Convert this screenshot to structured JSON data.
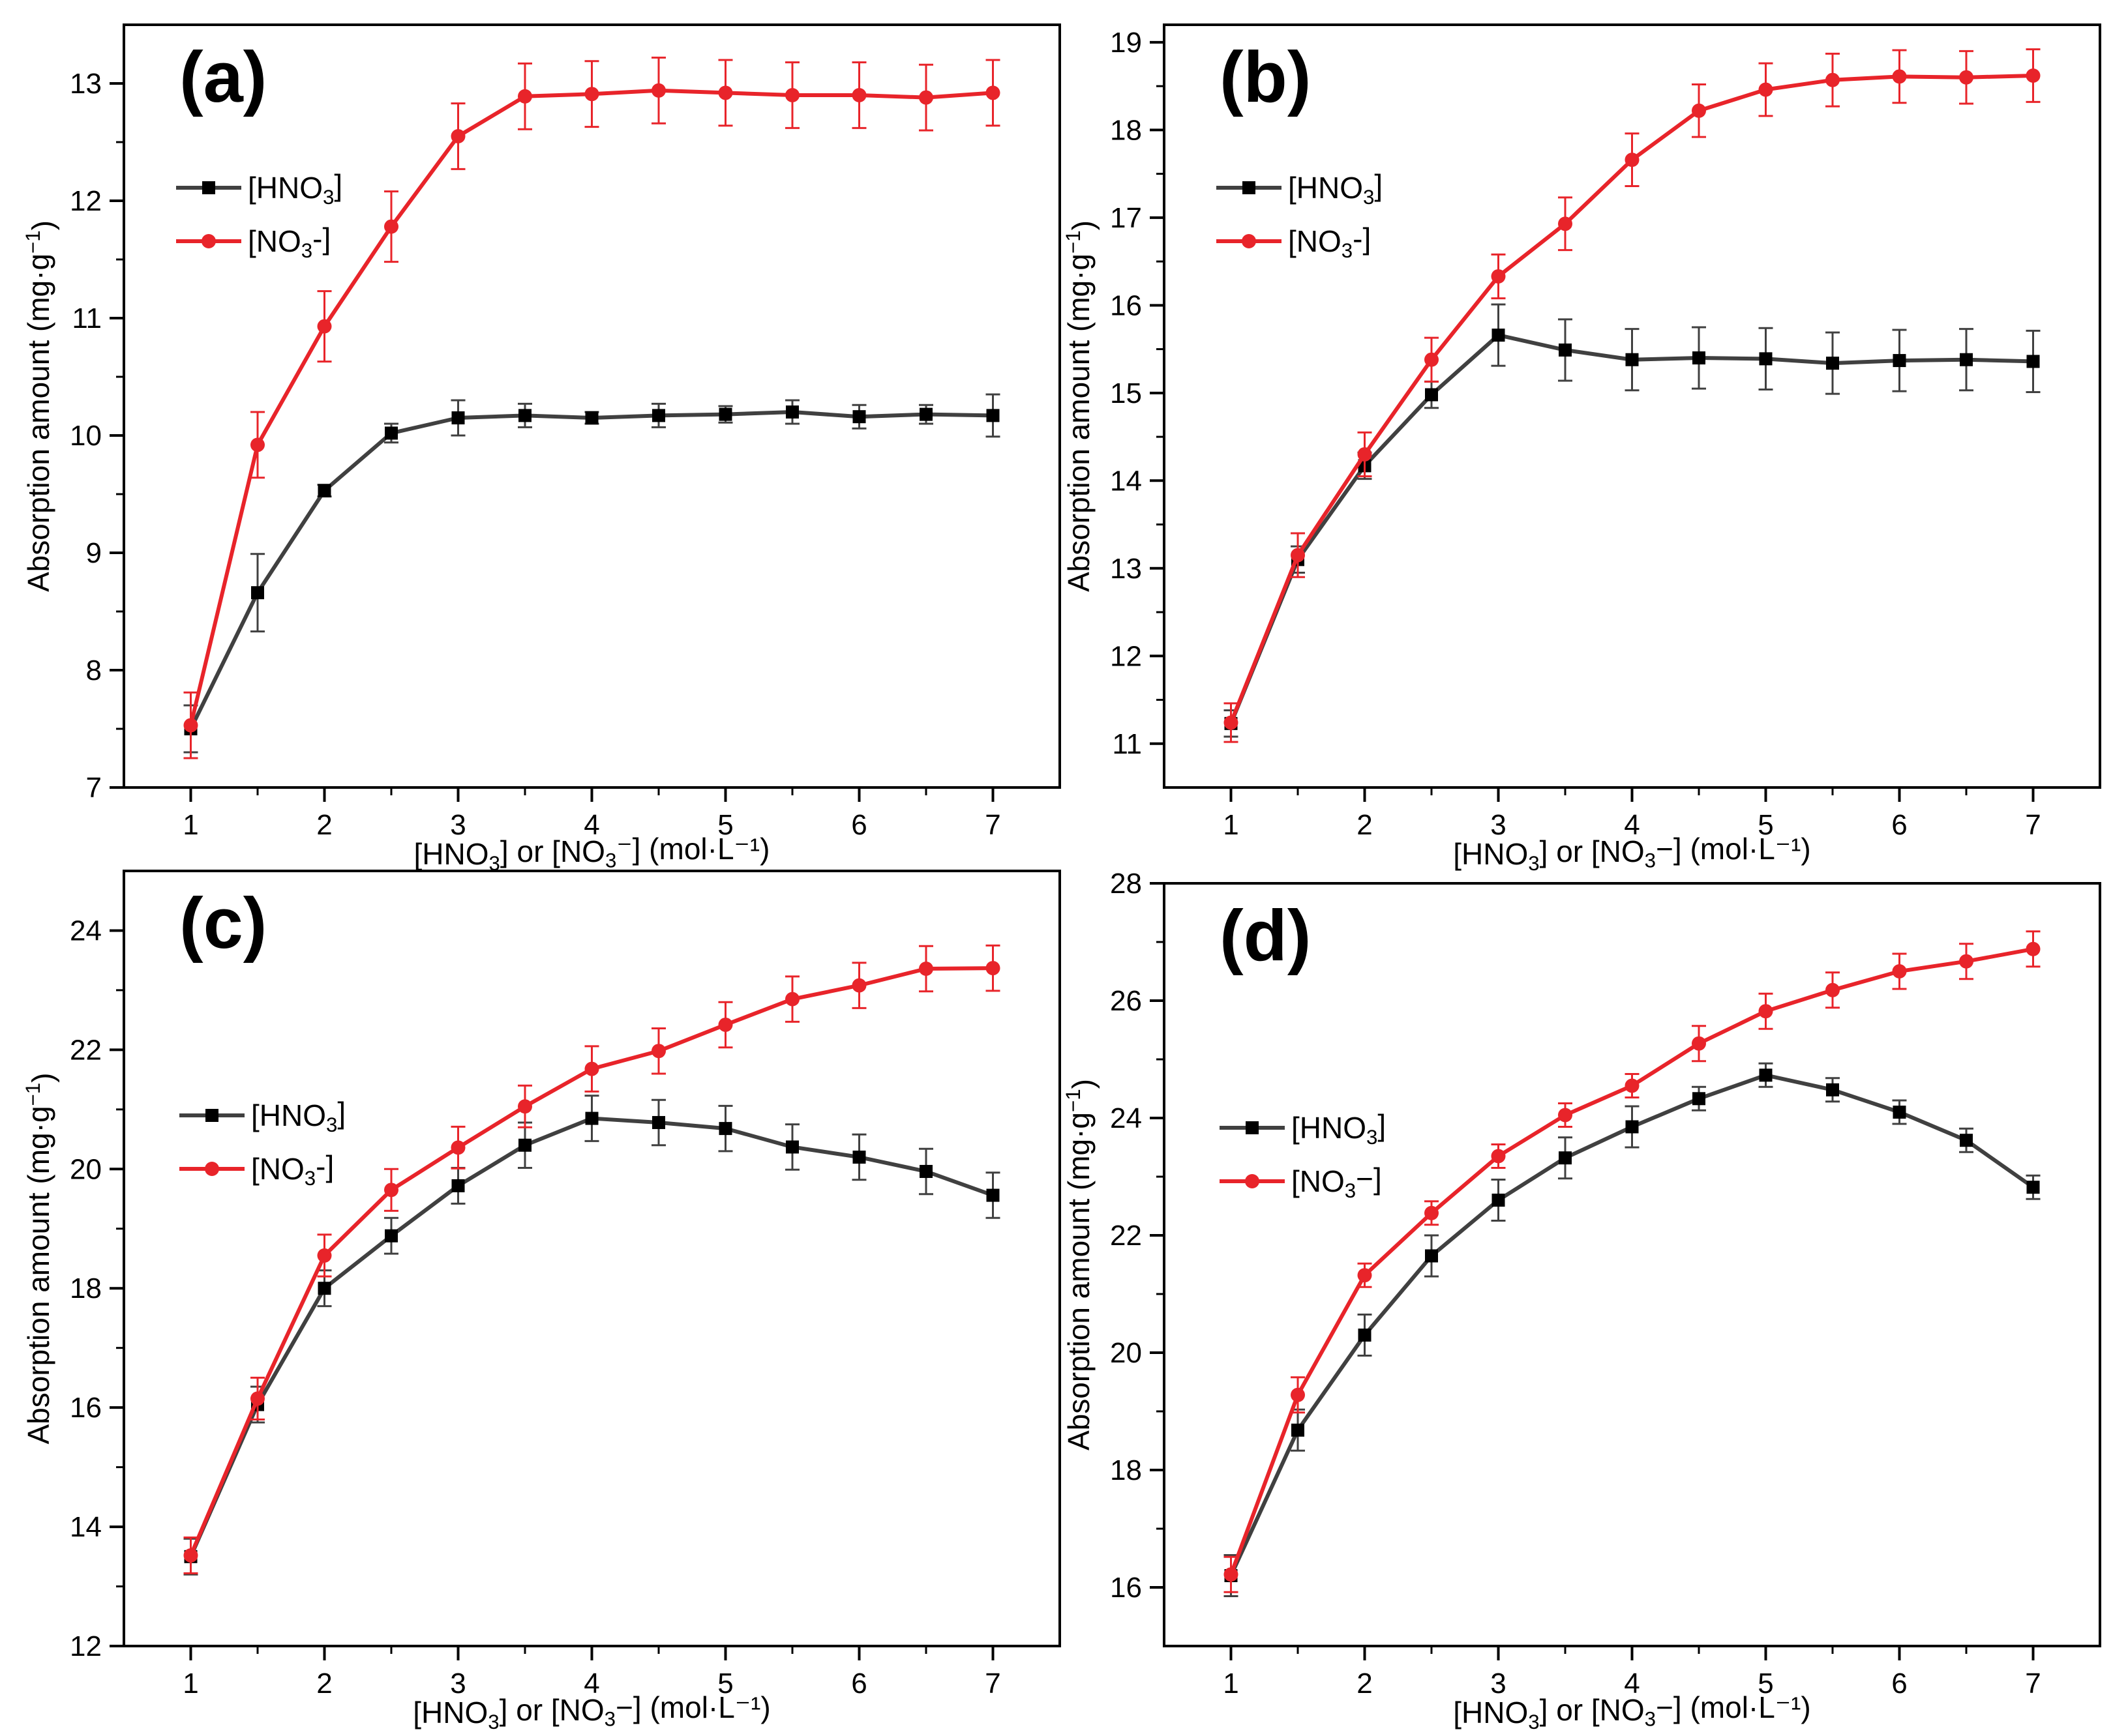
{
  "colors": {
    "hno3": "#404040",
    "no3": "#E8242A",
    "axis": "#000000"
  },
  "chart_data": [
    {
      "type": "line",
      "label": "(a)",
      "xlabel_parts": [
        "[HNO",
        "3",
        "] or [NO",
        "3",
        "⁻] (mol·L⁻¹)"
      ],
      "ylabel_parts": [
        "Absorption amount (mg·g",
        "−1",
        ")"
      ],
      "xlim": [
        0.5,
        7.5
      ],
      "ylim": [
        7,
        13.5
      ],
      "xticks": [
        1,
        2,
        3,
        4,
        5,
        6,
        7
      ],
      "yticks": [
        7,
        8,
        9,
        10,
        11,
        12,
        13
      ],
      "x": [
        1,
        1.5,
        2,
        2.5,
        3,
        3.5,
        4,
        4.5,
        5,
        5.5,
        6,
        6.5,
        7
      ],
      "legend_position": "upper-left",
      "series": [
        {
          "name": "[HNO3]",
          "legend_parts": [
            "[HNO",
            "3",
            "]"
          ],
          "marker": "square",
          "values": [
            7.5,
            8.66,
            9.53,
            10.02,
            10.15,
            10.17,
            10.15,
            10.17,
            10.18,
            10.2,
            10.16,
            10.18,
            10.17
          ],
          "errors": [
            0.2,
            0.33,
            0.05,
            0.08,
            0.15,
            0.1,
            0.05,
            0.1,
            0.07,
            0.1,
            0.1,
            0.08,
            0.18
          ]
        },
        {
          "name": "[NO3-]",
          "legend_parts": [
            "[NO",
            "3",
            "-]"
          ],
          "marker": "circle",
          "values": [
            7.53,
            9.92,
            10.93,
            11.78,
            12.55,
            12.89,
            12.91,
            12.94,
            12.92,
            12.9,
            12.9,
            12.88,
            12.92
          ],
          "errors": [
            0.28,
            0.28,
            0.3,
            0.3,
            0.28,
            0.28,
            0.28,
            0.28,
            0.28,
            0.28,
            0.28,
            0.28,
            0.28
          ]
        }
      ]
    },
    {
      "type": "line",
      "label": "(b)",
      "xlabel_parts": [
        "[HNO",
        "3",
        "] or [NO",
        "3",
        "−] (mol·L⁻¹)"
      ],
      "ylabel_parts": [
        "Absorption amount (mg·g",
        "−1",
        ")"
      ],
      "xlim": [
        0.5,
        7.5
      ],
      "ylim": [
        10.5,
        19.2
      ],
      "xticks": [
        1,
        2,
        3,
        4,
        5,
        6,
        7
      ],
      "yticks": [
        11,
        12,
        13,
        14,
        15,
        16,
        17,
        18,
        19
      ],
      "x": [
        1,
        1.5,
        2,
        2.5,
        3,
        3.5,
        4,
        4.5,
        5,
        5.5,
        6,
        6.5,
        7
      ],
      "legend_position": "upper-left",
      "series": [
        {
          "name": "[HNO3]",
          "legend_parts": [
            "[HNO",
            "3",
            "]"
          ],
          "marker": "square",
          "values": [
            11.23,
            13.1,
            14.17,
            14.98,
            15.66,
            15.49,
            15.38,
            15.4,
            15.39,
            15.34,
            15.37,
            15.38,
            15.36
          ],
          "errors": [
            0.15,
            0.15,
            0.15,
            0.15,
            0.35,
            0.35,
            0.35,
            0.35,
            0.35,
            0.35,
            0.35,
            0.35,
            0.35
          ]
        },
        {
          "name": "[NO3-]",
          "legend_parts": [
            "[NO",
            "3",
            "-]"
          ],
          "marker": "circle",
          "values": [
            11.24,
            13.15,
            14.3,
            15.38,
            16.33,
            16.93,
            17.66,
            18.22,
            18.46,
            18.57,
            18.61,
            18.6,
            18.62
          ],
          "errors": [
            0.22,
            0.25,
            0.25,
            0.25,
            0.25,
            0.3,
            0.3,
            0.3,
            0.3,
            0.3,
            0.3,
            0.3,
            0.3
          ]
        }
      ]
    },
    {
      "type": "line",
      "label": "(c)",
      "xlabel_parts": [
        "[HNO",
        "3",
        "] or [NO",
        "3",
        "−] (mol·L⁻¹)"
      ],
      "ylabel_parts": [
        "Absorption amount (mg·g",
        "−1",
        ")"
      ],
      "xlim": [
        0.5,
        7.5
      ],
      "ylim": [
        12,
        25
      ],
      "xticks": [
        1,
        2,
        3,
        4,
        5,
        6,
        7
      ],
      "yticks": [
        12,
        14,
        16,
        18,
        20,
        22,
        24
      ],
      "x": [
        1,
        1.5,
        2,
        2.5,
        3,
        3.5,
        4,
        4.5,
        5,
        5.5,
        6,
        6.5,
        7
      ],
      "legend_position": "middle-left",
      "series": [
        {
          "name": "[HNO3]",
          "legend_parts": [
            "[HNO",
            "3",
            "]"
          ],
          "marker": "square",
          "values": [
            13.5,
            16.05,
            18.0,
            18.88,
            19.72,
            20.4,
            20.85,
            20.78,
            20.68,
            20.37,
            20.2,
            19.96,
            19.56
          ],
          "errors": [
            0.3,
            0.3,
            0.3,
            0.3,
            0.3,
            0.38,
            0.38,
            0.38,
            0.38,
            0.38,
            0.38,
            0.38,
            0.38
          ]
        },
        {
          "name": "[NO3-]",
          "legend_parts": [
            "[NO",
            "3",
            "-]"
          ],
          "marker": "circle",
          "values": [
            13.52,
            16.15,
            18.55,
            19.65,
            20.36,
            21.05,
            21.68,
            21.98,
            22.42,
            22.85,
            23.08,
            23.36,
            23.37
          ],
          "errors": [
            0.3,
            0.35,
            0.35,
            0.35,
            0.35,
            0.35,
            0.38,
            0.38,
            0.38,
            0.38,
            0.38,
            0.38,
            0.38
          ]
        }
      ]
    },
    {
      "type": "line",
      "label": "(d)",
      "xlabel_parts": [
        "[HNO",
        "3",
        "] or [NO",
        "3",
        "−] (mol·L⁻¹)"
      ],
      "ylabel_parts": [
        "Absorption amount (mg·g",
        "−1",
        ")"
      ],
      "xlim": [
        0.5,
        7.5
      ],
      "ylim": [
        15,
        28
      ],
      "xticks": [
        1,
        2,
        3,
        4,
        5,
        6,
        7
      ],
      "yticks": [
        16,
        18,
        20,
        22,
        24,
        26,
        28
      ],
      "x": [
        1,
        1.5,
        2,
        2.5,
        3,
        3.5,
        4,
        4.5,
        5,
        5.5,
        6,
        6.5,
        7
      ],
      "legend_position": "middle-left",
      "series": [
        {
          "name": "[HNO3]",
          "legend_parts": [
            "[HNO",
            "3",
            "]"
          ],
          "marker": "square",
          "values": [
            16.2,
            18.68,
            20.3,
            21.65,
            22.6,
            23.32,
            23.85,
            24.33,
            24.73,
            24.48,
            24.1,
            23.62,
            22.82
          ],
          "errors": [
            0.35,
            0.35,
            0.35,
            0.35,
            0.35,
            0.35,
            0.35,
            0.2,
            0.2,
            0.2,
            0.2,
            0.2,
            0.2
          ]
        },
        {
          "name": "[NO3-]",
          "legend_parts": [
            "[NO",
            "3",
            "−]"
          ],
          "marker": "circle",
          "values": [
            16.22,
            19.28,
            21.32,
            22.38,
            23.35,
            24.05,
            24.55,
            25.27,
            25.82,
            26.18,
            26.5,
            26.67,
            26.88
          ],
          "errors": [
            0.3,
            0.3,
            0.2,
            0.2,
            0.2,
            0.2,
            0.2,
            0.3,
            0.3,
            0.3,
            0.3,
            0.3,
            0.3
          ]
        }
      ]
    }
  ]
}
